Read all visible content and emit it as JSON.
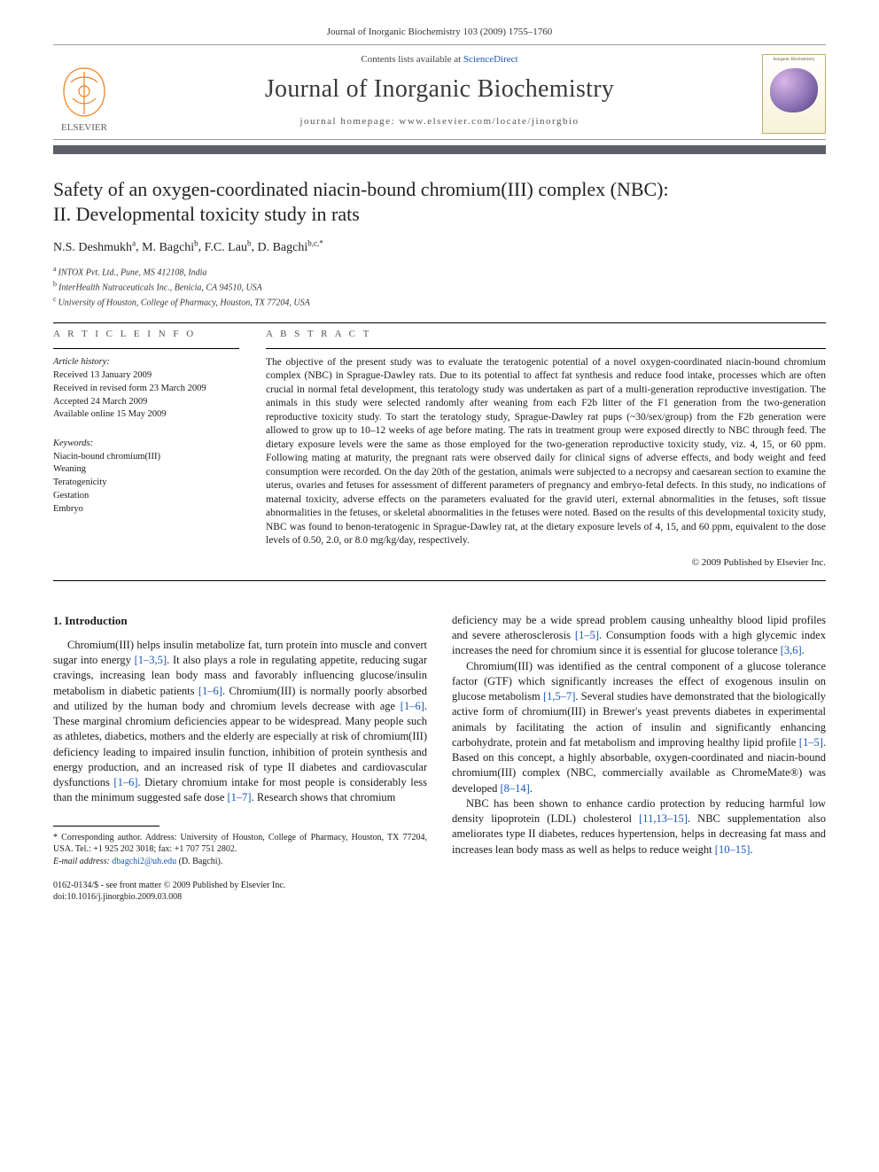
{
  "running_head": "Journal of Inorganic Biochemistry 103 (2009) 1755–1760",
  "masthead": {
    "contents_prefix": "Contents lists available at ",
    "contents_link": "ScienceDirect",
    "journal_name": "Journal of Inorganic Biochemistry",
    "homepage_label": "journal homepage: www.elsevier.com/locate/jinorgbio",
    "publisher": "ELSEVIER",
    "cover_label": "Inorganic Biochemistry"
  },
  "title": {
    "line1": "Safety of an oxygen-coordinated niacin-bound chromium(III) complex (NBC):",
    "line2": "II. Developmental toxicity study in rats"
  },
  "authors_html": "N.S. Deshmukh a, M. Bagchi b, F.C. Lau b, D. Bagchi b,c,*",
  "authors": [
    {
      "name": "N.S. Deshmukh",
      "aff": "a"
    },
    {
      "name": "M. Bagchi",
      "aff": "b"
    },
    {
      "name": "F.C. Lau",
      "aff": "b"
    },
    {
      "name": "D. Bagchi",
      "aff": "b,c,*"
    }
  ],
  "affiliations": [
    {
      "sup": "a",
      "text": "INTOX Pvt. Ltd., Pune, MS 412108, India"
    },
    {
      "sup": "b",
      "text": "InterHealth Nutraceuticals Inc., Benicia, CA 94510, USA"
    },
    {
      "sup": "c",
      "text": "University of Houston, College of Pharmacy, Houston, TX 77204, USA"
    }
  ],
  "article_info": {
    "heading": "A R T I C L E   I N F O",
    "history_head": "Article history:",
    "history": [
      "Received 13 January 2009",
      "Received in revised form 23 March 2009",
      "Accepted 24 March 2009",
      "Available online 15 May 2009"
    ],
    "keywords_head": "Keywords:",
    "keywords": [
      "Niacin-bound chromium(III)",
      "Weaning",
      "Teratogenicity",
      "Gestation",
      "Embryo"
    ]
  },
  "abstract": {
    "heading": "A B S T R A C T",
    "text": "The objective of the present study was to evaluate the teratogenic potential of a novel oxygen-coordinated niacin-bound chromium complex (NBC) in Sprague-Dawley rats. Due to its potential to affect fat synthesis and reduce food intake, processes which are often crucial in normal fetal development, this teratology study was undertaken as part of a multi-generation reproductive investigation. The animals in this study were selected randomly after weaning from each F2b litter of the F1 generation from the two-generation reproductive toxicity study. To start the teratology study, Sprague-Dawley rat pups (~30/sex/group) from the F2b generation were allowed to grow up to 10–12 weeks of age before mating. The rats in treatment group were exposed directly to NBC through feed. The dietary exposure levels were the same as those employed for the two-generation reproductive toxicity study, viz. 4, 15, or 60 ppm. Following mating at maturity, the pregnant rats were observed daily for clinical signs of adverse effects, and body weight and feed consumption were recorded. On the day 20th of the gestation, animals were subjected to a necropsy and caesarean section to examine the uterus, ovaries and fetuses for assessment of different parameters of pregnancy and embryo-fetal defects. In this study, no indications of maternal toxicity, adverse effects on the parameters evaluated for the gravid uteri, external abnormalities in the fetuses, soft tissue abnormalities in the fetuses, or skeletal abnormalities in the fetuses were noted. Based on the results of this developmental toxicity study, NBC was found to benon-teratogenic in Sprague-Dawley rat, at the dietary exposure levels of 4, 15, and 60 ppm, equivalent to the dose levels of 0.50, 2.0, or 8.0 mg/kg/day, respectively.",
    "copyright": "© 2009 Published by Elsevier Inc."
  },
  "body": {
    "intro_head": "1. Introduction",
    "left_paras": [
      "Chromium(III) helps insulin metabolize fat, turn protein into muscle and convert sugar into energy [1–3,5]. It also plays a role in regulating appetite, reducing sugar cravings, increasing lean body mass and favorably influencing glucose/insulin metabolism in diabetic patients [1–6]. Chromium(III) is normally poorly absorbed and utilized by the human body and chromium levels decrease with age [1–6]. These marginal chromium deficiencies appear to be widespread. Many people such as athletes, diabetics, mothers and the elderly are especially at risk of chromium(III) deficiency leading to impaired insulin function, inhibition of protein synthesis and energy production, and an increased risk of type II diabetes and cardiovascular dysfunctions [1–6]. Dietary chromium intake for most people is considerably less than the minimum suggested safe dose [1–7]. Research shows that chromium"
    ],
    "right_paras": [
      "deficiency may be a wide spread problem causing unhealthy blood lipid profiles and severe atherosclerosis [1–5]. Consumption foods with a high glycemic index increases the need for chromium since it is essential for glucose tolerance [3,6].",
      "Chromium(III) was identified as the central component of a glucose tolerance factor (GTF) which significantly increases the effect of exogenous insulin on glucose metabolism [1,5–7]. Several studies have demonstrated that the biologically active form of chromium(III) in Brewer's yeast prevents diabetes in experimental animals by facilitating the action of insulin and significantly enhancing carbohydrate, protein and fat metabolism and improving healthy lipid profile [1–5]. Based on this concept, a highly absorbable, oxygen-coordinated and niacin-bound chromium(III) complex (NBC, commercially available as ChromeMate®) was developed [8–14].",
      "NBC has been shown to enhance cardio protection by reducing harmful low density lipoprotein (LDL) cholesterol [11,13–15]. NBC supplementation also ameliorates type II diabetes, reduces hypertension, helps in decreasing fat mass and increases lean body mass as well as helps to reduce weight [10–15]."
    ],
    "citations_map": {
      "[1–3,5]": "#",
      "[1–6]": "#",
      "[1–7]": "#",
      "[1–5]": "#",
      "[3,6]": "#",
      "[1,5–7]": "#",
      "[8–14]": "#",
      "[11,13–15]": "#",
      "[10–15]": "#"
    }
  },
  "footnote": {
    "corr": "* Corresponding author. Address: University of Houston, College of Pharmacy, Houston, TX 77204, USA. Tel.: +1 925 202 3018; fax: +1 707 751 2802.",
    "email_label": "E-mail address: ",
    "email": "dbagchi2@uh.edu",
    "email_paren": " (D. Bagchi)."
  },
  "bottom": {
    "line1": "0162-0134/$ - see front matter © 2009 Published by Elsevier Inc.",
    "line2": "doi:10.1016/j.jinorgbio.2009.03.008"
  },
  "colors": {
    "link": "#1855b5",
    "rule_thick": "#5a6066",
    "text": "#1a1a1a",
    "elsevier_orange": "#ef7f1a",
    "elsevier_text": "#5a6066"
  }
}
